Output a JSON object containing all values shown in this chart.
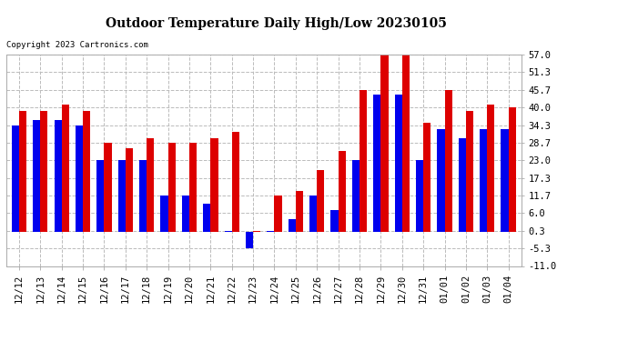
{
  "title": "Outdoor Temperature Daily High/Low 20230105",
  "copyright": "Copyright 2023 Cartronics.com",
  "bar_width": 0.35,
  "colors": {
    "low": "#0000ee",
    "high": "#dd0000",
    "background": "#ffffff",
    "grid": "#bbbbbb"
  },
  "ylim": [
    -11.0,
    57.0
  ],
  "yticks": [
    -11.0,
    -5.3,
    0.3,
    6.0,
    11.7,
    17.3,
    23.0,
    28.7,
    34.3,
    40.0,
    45.7,
    51.3,
    57.0
  ],
  "dates": [
    "12/12",
    "12/13",
    "12/14",
    "12/15",
    "12/16",
    "12/17",
    "12/18",
    "12/19",
    "12/20",
    "12/21",
    "12/22",
    "12/23",
    "12/24",
    "12/25",
    "12/26",
    "12/27",
    "12/28",
    "12/29",
    "12/30",
    "12/31",
    "01/01",
    "01/02",
    "01/03",
    "01/04"
  ],
  "highs": [
    39.0,
    39.0,
    41.0,
    39.0,
    28.7,
    27.0,
    30.0,
    28.7,
    28.7,
    30.0,
    32.0,
    0.3,
    11.7,
    13.0,
    20.0,
    26.0,
    45.7,
    57.0,
    57.0,
    35.0,
    45.7,
    39.0,
    41.0,
    40.0
  ],
  "lows": [
    34.3,
    36.0,
    36.0,
    34.3,
    23.0,
    23.0,
    23.0,
    11.7,
    11.7,
    9.0,
    0.3,
    -5.3,
    0.3,
    4.0,
    11.7,
    7.0,
    23.0,
    44.0,
    44.0,
    23.0,
    33.0,
    30.0,
    33.0,
    33.0
  ]
}
